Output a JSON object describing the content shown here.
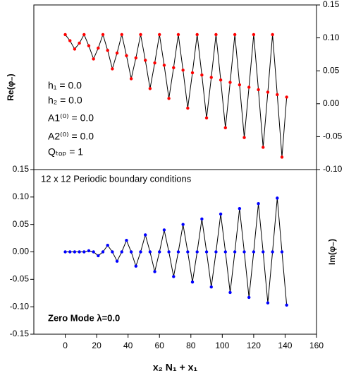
{
  "chart_data": [
    {
      "type": "line",
      "ylabel": "Re(φ₋)",
      "ylim": [
        -0.1,
        0.15
      ],
      "yaxis_side": "right",
      "yticks": [
        {
          "value": -0.1,
          "label": "-0.10"
        },
        {
          "value": -0.05,
          "label": "-0.05"
        },
        {
          "value": 0.0,
          "label": "0.00"
        },
        {
          "value": 0.05,
          "label": "0.05"
        },
        {
          "value": 0.1,
          "label": "0.10"
        },
        {
          "value": 0.15,
          "label": "0.15"
        }
      ],
      "xlim": [
        -20,
        160
      ],
      "annotations": [
        "h₁ = 0.0",
        "h₂ = 0.0",
        "A1⁽⁰⁾ = 0.0",
        "A2⁽⁰⁾ = 0.0",
        "Qₜₒₚ = 1"
      ],
      "x": [
        0,
        3,
        6,
        9,
        12,
        15,
        18,
        21,
        24,
        27,
        30,
        33,
        36,
        39,
        42,
        45,
        48,
        51,
        54,
        57,
        60,
        63,
        66,
        69,
        72,
        75,
        78,
        81,
        84,
        87,
        90,
        93,
        96,
        99,
        102,
        105,
        108,
        111,
        114,
        117,
        120,
        123,
        126,
        129,
        132,
        135,
        138,
        141
      ],
      "series": [
        {
          "color": "#ff0000",
          "values": [
            0.105,
            0.0957,
            0.083,
            0.092,
            0.105,
            0.088,
            0.068,
            0.0845,
            0.105,
            0.081,
            0.053,
            0.077,
            0.105,
            0.073,
            0.038,
            0.0696,
            0.105,
            0.066,
            0.023,
            0.062,
            0.105,
            0.0585,
            0.008,
            0.0547,
            0.105,
            0.051,
            -0.0067,
            0.047,
            0.105,
            0.0436,
            -0.0216,
            0.04,
            0.105,
            0.036,
            -0.0365,
            0.0324,
            0.105,
            0.0287,
            -0.0514,
            0.025,
            0.105,
            0.0213,
            -0.0662,
            0.0175,
            0.105,
            0.0138,
            -0.0811,
            0.01
          ]
        }
      ]
    },
    {
      "type": "line",
      "ylabel": "Im(φ₋)",
      "ylim": [
        -0.15,
        0.15
      ],
      "yaxis_side": "left",
      "yticks": [
        {
          "value": -0.15,
          "label": "-0.15"
        },
        {
          "value": -0.1,
          "label": "-0.10"
        },
        {
          "value": -0.05,
          "label": "-0.05"
        },
        {
          "value": 0.0,
          "label": "0.00"
        },
        {
          "value": 0.05,
          "label": "0.05"
        },
        {
          "value": 0.1,
          "label": "0.10"
        },
        {
          "value": 0.15,
          "label": "0.15"
        }
      ],
      "xlim": [
        -20,
        160
      ],
      "xticks": [
        0,
        20,
        40,
        60,
        80,
        100,
        120,
        140,
        160
      ],
      "xlabel": "x₂ N₁ + x₁",
      "annotations": [
        "12 x 12  Periodic boundary conditions",
        "Zero Mode  λ=0.0"
      ],
      "x": [
        0,
        3,
        6,
        9,
        12,
        15,
        18,
        21,
        24,
        27,
        30,
        33,
        36,
        39,
        42,
        45,
        48,
        51,
        54,
        57,
        60,
        63,
        66,
        69,
        72,
        75,
        78,
        81,
        84,
        87,
        90,
        93,
        96,
        99,
        102,
        105,
        108,
        111,
        114,
        117,
        120,
        123,
        126,
        129,
        132,
        135,
        138,
        141
      ],
      "series": [
        {
          "color": "#0000ff",
          "values": [
            0,
            0,
            0,
            0,
            0,
            0.002,
            0,
            -0.007,
            0,
            0.012,
            0,
            -0.017,
            0,
            0.021,
            0,
            -0.026,
            0,
            0.031,
            0,
            -0.036,
            0,
            0.04,
            0,
            -0.045,
            0,
            0.05,
            0,
            -0.055,
            0,
            0.06,
            0,
            -0.064,
            0,
            0.069,
            0,
            -0.074,
            0,
            0.079,
            0,
            -0.083,
            0,
            0.088,
            0,
            -0.093,
            0,
            0.098,
            0,
            -0.097
          ]
        }
      ]
    }
  ]
}
